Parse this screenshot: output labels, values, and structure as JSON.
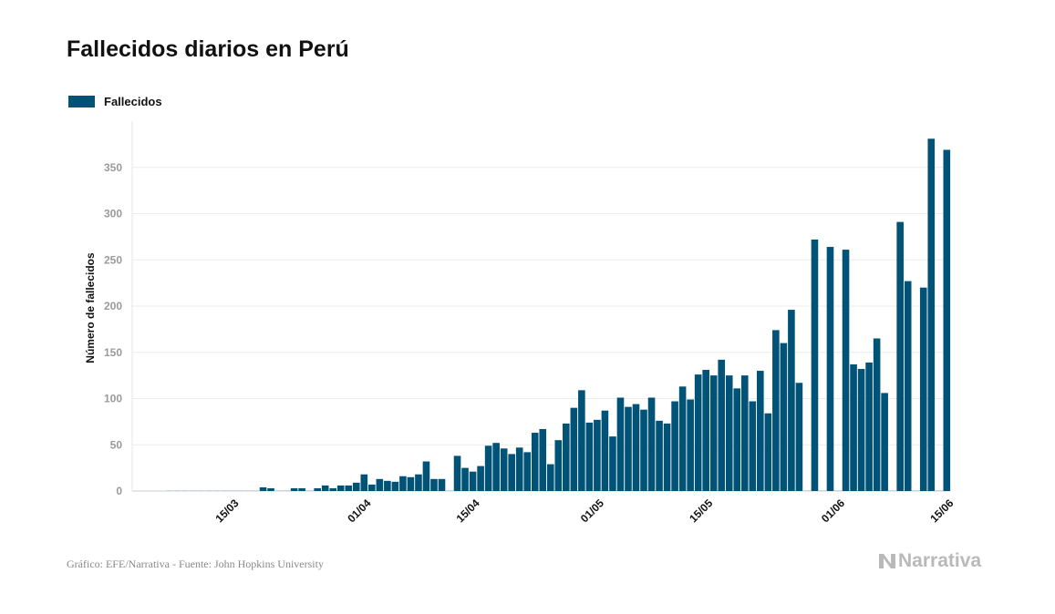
{
  "title": "Fallecidos diarios en Perú",
  "legend": {
    "label": "Fallecidos",
    "color": "#005276"
  },
  "footer": {
    "source": "Gráfico: EFE/Narrativa - Fuente: John Hopkins University",
    "brand": "Narrativa",
    "brand_icon": "narrativa-n-icon"
  },
  "chart_data": {
    "type": "bar",
    "ylabel": "Número de fallecidos",
    "ylim": [
      0,
      400
    ],
    "yticks": [
      0,
      50,
      100,
      150,
      200,
      250,
      300,
      350
    ],
    "x_start": "2020-03-07",
    "xtick_labels": [
      {
        "date": "2020-03-15",
        "label": "15/03"
      },
      {
        "date": "2020-04-01",
        "label": "01/04"
      },
      {
        "date": "2020-04-15",
        "label": "15/04"
      },
      {
        "date": "2020-05-01",
        "label": "01/05"
      },
      {
        "date": "2020-05-15",
        "label": "15/05"
      },
      {
        "date": "2020-06-01",
        "label": "01/06"
      },
      {
        "date": "2020-06-15",
        "label": "15/06"
      }
    ],
    "series": [
      {
        "name": "Fallecidos",
        "color": "#005276",
        "values": [
          0,
          0,
          0,
          0,
          0,
          0,
          0,
          0,
          0,
          0,
          0,
          0,
          4,
          3,
          0,
          0,
          3,
          3,
          0,
          3,
          6,
          3,
          6,
          6,
          9,
          18,
          7,
          13,
          11,
          10,
          16,
          15,
          18,
          32,
          13,
          13,
          0,
          38,
          25,
          21,
          27,
          49,
          52,
          46,
          40,
          47,
          42,
          63,
          67,
          29,
          55,
          73,
          90,
          109,
          74,
          77,
          87,
          59,
          101,
          91,
          94,
          88,
          101,
          76,
          73,
          97,
          113,
          99,
          126,
          131,
          125,
          142,
          125,
          111,
          125,
          97,
          130,
          84,
          174,
          160,
          196,
          117,
          0,
          272,
          0,
          264,
          0,
          261,
          137,
          132,
          139,
          165,
          106,
          0,
          291,
          227,
          0,
          220,
          381,
          0,
          369
        ]
      }
    ]
  }
}
